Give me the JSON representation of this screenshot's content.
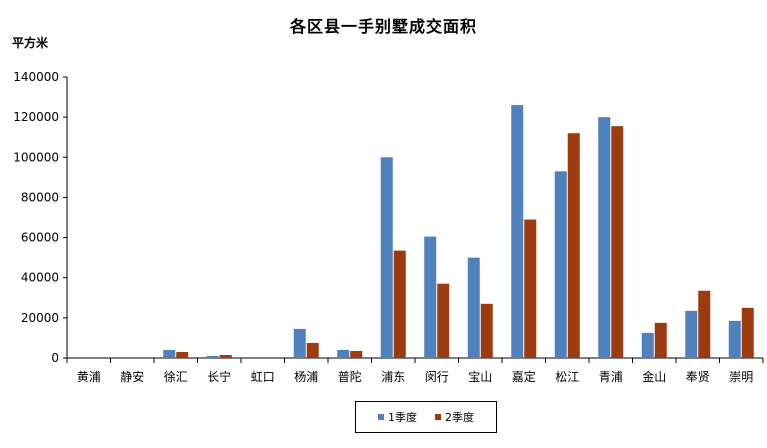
{
  "chart_data": {
    "type": "bar",
    "title": "各区县一手别墅成交面积",
    "ylabel": "平方米",
    "xlabel": "",
    "ylim": [
      0,
      140000
    ],
    "yticks": [
      0,
      20000,
      40000,
      60000,
      80000,
      100000,
      120000,
      140000
    ],
    "grid": false,
    "legend_position": "bottom",
    "categories": [
      "黄浦",
      "静安",
      "徐汇",
      "长宁",
      "虹口",
      "杨浦",
      "普陀",
      "浦东",
      "闵行",
      "宝山",
      "嘉定",
      "松江",
      "青浦",
      "金山",
      "奉贤",
      "崇明"
    ],
    "series": [
      {
        "name": "1季度",
        "color": "#4F81BD",
        "values": [
          0,
          0,
          4000,
          1000,
          0,
          14500,
          4000,
          100000,
          60500,
          50000,
          126000,
          93000,
          120000,
          12500,
          23500,
          18500
        ]
      },
      {
        "name": "2季度",
        "color": "#9B3B0F",
        "values": [
          0,
          0,
          3000,
          1500,
          0,
          7500,
          3500,
          53500,
          37000,
          27000,
          69000,
          112000,
          115500,
          17500,
          33500,
          25000
        ]
      }
    ]
  }
}
